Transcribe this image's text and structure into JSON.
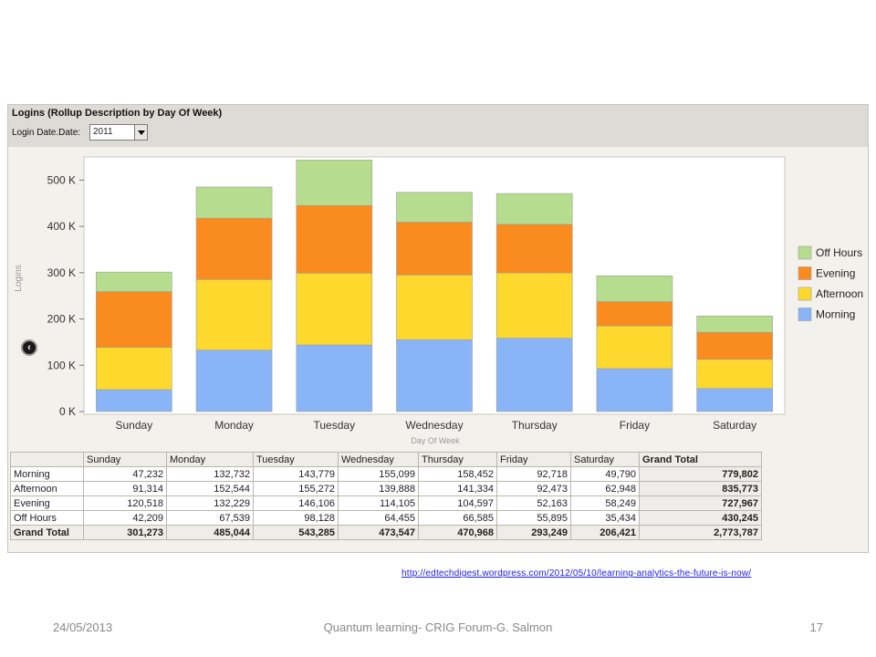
{
  "panel": {
    "title": "Logins (Rollup Description by Day Of Week)",
    "filter_label": "Login Date.Date:",
    "filter_value": "2011",
    "back_icon": "chevron-left-icon"
  },
  "colors": {
    "Morning": "#8ab4f8",
    "Afternoon": "#fcd92c",
    "Evening": "#f98b1f",
    "Off Hours": "#b6dc8e"
  },
  "chart_data": {
    "type": "bar",
    "stacked": true,
    "categories": [
      "Sunday",
      "Monday",
      "Tuesday",
      "Wednesday",
      "Thursday",
      "Friday",
      "Saturday"
    ],
    "series": [
      {
        "name": "Morning",
        "values": [
          47232,
          132732,
          143779,
          155099,
          158452,
          92718,
          49790
        ]
      },
      {
        "name": "Afternoon",
        "values": [
          91314,
          152544,
          155272,
          139888,
          141334,
          92473,
          62948
        ]
      },
      {
        "name": "Evening",
        "values": [
          120518,
          132229,
          146106,
          114105,
          104597,
          52163,
          58249
        ]
      },
      {
        "name": "Off Hours",
        "values": [
          42209,
          67539,
          98128,
          64455,
          66585,
          55895,
          35434
        ]
      }
    ],
    "yticks": [
      "0 K",
      "100 K",
      "200 K",
      "300 K",
      "400 K",
      "500 K"
    ],
    "ylim": [
      0,
      550000
    ],
    "ylabel": "Logins",
    "xlabel": "Day Of Week",
    "legend": [
      "Off Hours",
      "Evening",
      "Afternoon",
      "Morning"
    ],
    "legend_position": "right",
    "grid": false
  },
  "table": {
    "headers": [
      "",
      "Sunday",
      "Monday",
      "Tuesday",
      "Wednesday",
      "Thursday",
      "Friday",
      "Saturday",
      "Grand Total"
    ],
    "rows": [
      {
        "label": "Morning",
        "cells": [
          "47,232",
          "132,732",
          "143,779",
          "155,099",
          "158,452",
          "92,718",
          "49,790",
          "779,802"
        ]
      },
      {
        "label": "Afternoon",
        "cells": [
          "91,314",
          "152,544",
          "155,272",
          "139,888",
          "141,334",
          "92,473",
          "62,948",
          "835,773"
        ]
      },
      {
        "label": "Evening",
        "cells": [
          "120,518",
          "132,229",
          "146,106",
          "114,105",
          "104,597",
          "52,163",
          "58,249",
          "727,967"
        ]
      },
      {
        "label": "Off Hours",
        "cells": [
          "42,209",
          "67,539",
          "98,128",
          "64,455",
          "66,585",
          "55,895",
          "35,434",
          "430,245"
        ]
      },
      {
        "label": "Grand Total",
        "cells": [
          "301,273",
          "485,044",
          "543,285",
          "473,547",
          "470,968",
          "293,249",
          "206,421",
          "2,773,787"
        ]
      }
    ]
  },
  "link": "http://edtechdigest.wordpress.com/2012/05/10/learning-analytics-the-future-is-now/",
  "footer": {
    "date": "24/05/2013",
    "center": "Quantum learning- CRIG Forum-G. Salmon",
    "page": "17"
  }
}
